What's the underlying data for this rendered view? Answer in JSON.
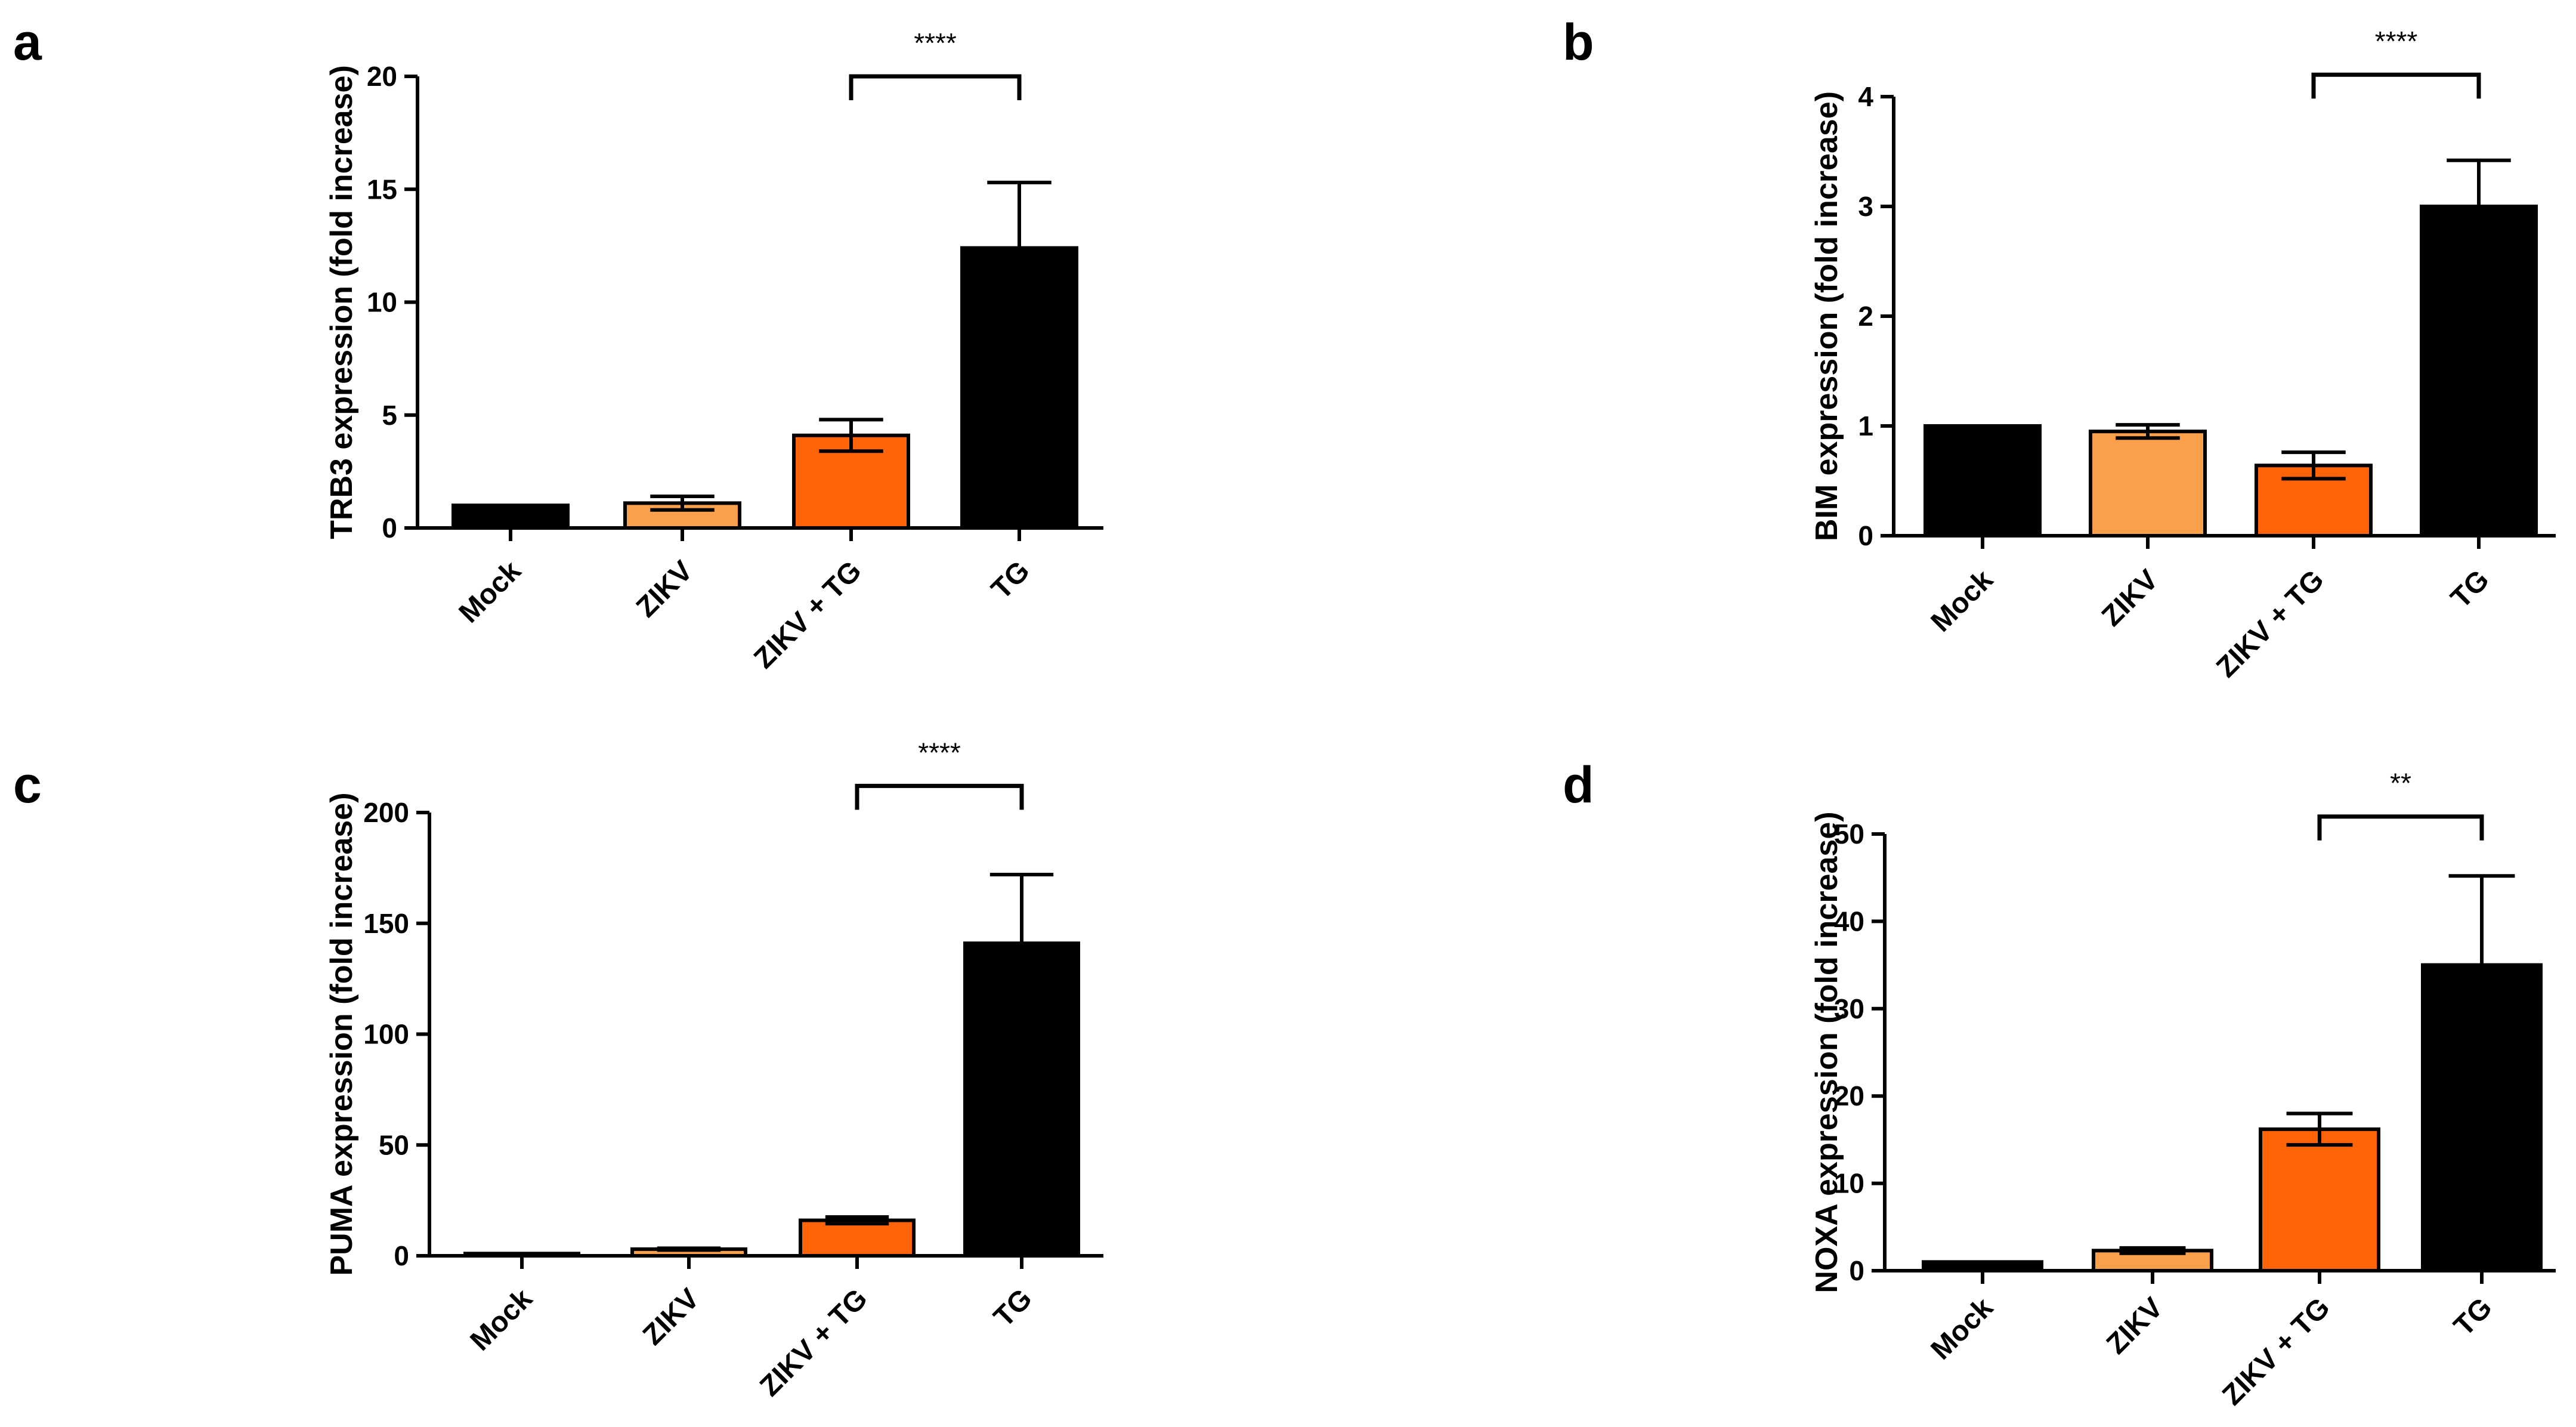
{
  "colors": {
    "black": "#000000",
    "light_orange": "#FBA04A",
    "orange": "#FF6308",
    "axis": "#000000"
  },
  "chart_data": [
    {
      "panel": "a",
      "type": "bar",
      "categories": [
        "Mock",
        "ZIKV",
        "ZIKV + TG",
        "TG"
      ],
      "values": [
        1.0,
        1.1,
        4.1,
        12.4
      ],
      "errors": [
        0.0,
        0.3,
        0.7,
        2.9
      ],
      "bar_colors": [
        "#000000",
        "#FBA04A",
        "#FF6308",
        "#000000"
      ],
      "ylabel": "TRB3 expression (fold increase)",
      "ylim": [
        0,
        20
      ],
      "yticks": [
        0,
        5,
        10,
        15,
        20
      ],
      "significance": {
        "from": "ZIKV + TG",
        "to": "TG",
        "label": "****",
        "level": 20
      }
    },
    {
      "panel": "b",
      "type": "bar",
      "categories": [
        "Mock",
        "ZIKV",
        "ZIKV + TG",
        "TG"
      ],
      "values": [
        1.0,
        0.95,
        0.64,
        3.0
      ],
      "errors": [
        0.0,
        0.06,
        0.12,
        0.42
      ],
      "bar_colors": [
        "#000000",
        "#FBA04A",
        "#FF6308",
        "#000000"
      ],
      "ylabel": "BIM expression (fold increase)",
      "ylim": [
        0,
        4
      ],
      "yticks": [
        0,
        1,
        2,
        3,
        4
      ],
      "significance": {
        "from": "ZIKV + TG",
        "to": "TG",
        "label": "****",
        "level": 4.2
      }
    },
    {
      "panel": "c",
      "type": "bar",
      "categories": [
        "Mock",
        "ZIKV",
        "ZIKV + TG",
        "TG"
      ],
      "values": [
        1.0,
        3.0,
        16.0,
        141.0
      ],
      "errors": [
        0.0,
        0.4,
        1.5,
        31.0
      ],
      "bar_colors": [
        "#000000",
        "#FBA04A",
        "#FF6308",
        "#000000"
      ],
      "ylabel": "PUMA expression (fold increase)",
      "ylim": [
        0,
        200
      ],
      "yticks": [
        0,
        50,
        100,
        150,
        200
      ],
      "significance": {
        "from": "ZIKV + TG",
        "to": "TG",
        "label": "****",
        "level": 212
      }
    },
    {
      "panel": "d",
      "type": "bar",
      "categories": [
        "Mock",
        "ZIKV",
        "ZIKV + TG",
        "TG"
      ],
      "values": [
        1.0,
        2.3,
        16.2,
        35.0
      ],
      "errors": [
        0.0,
        0.3,
        1.8,
        10.2
      ],
      "bar_colors": [
        "#000000",
        "#FBA04A",
        "#FF6308",
        "#000000"
      ],
      "ylabel": "NOXA expression (fold increase)",
      "ylim": [
        0,
        50
      ],
      "yticks": [
        0,
        10,
        20,
        30,
        40,
        50
      ],
      "significance": {
        "from": "ZIKV + TG",
        "to": "TG",
        "label": "**",
        "level": 52
      }
    }
  ]
}
